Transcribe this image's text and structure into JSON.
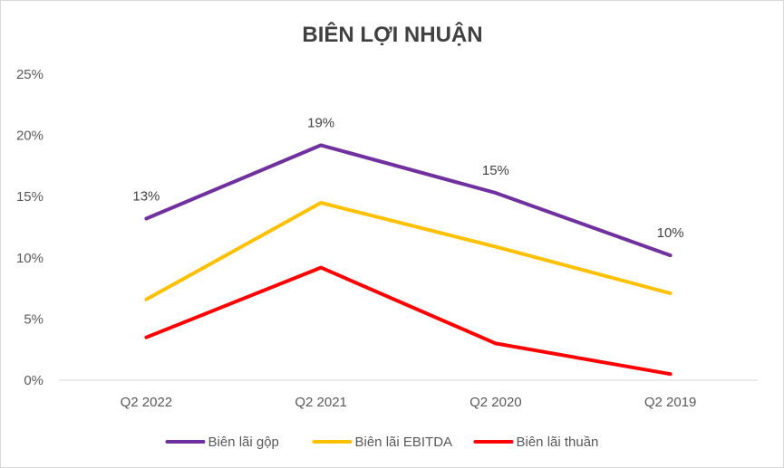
{
  "chart_data": {
    "type": "line",
    "title": "BIÊN LỢI NHUẬN",
    "categories": [
      "Q2 2022",
      "Q2 2021",
      "Q2 2020",
      "Q2 2019"
    ],
    "ylim": [
      0,
      0.25
    ],
    "yticks": [
      "0%",
      "5%",
      "10%",
      "15%",
      "20%",
      "25%"
    ],
    "grid": false,
    "legend_position": "bottom",
    "series": [
      {
        "name": "Biên lãi gộp",
        "color": "#7030a0",
        "values": [
          0.132,
          0.192,
          0.153,
          0.102
        ],
        "labels": [
          "13%",
          "19%",
          "15%",
          "10%"
        ]
      },
      {
        "name": "Biên lãi EBITDA",
        "color": "#ffc000",
        "values": [
          0.066,
          0.145,
          0.109,
          0.071
        ]
      },
      {
        "name": "Biên lãi thuần",
        "color": "#ff0000",
        "values": [
          0.035,
          0.092,
          0.03,
          0.005
        ]
      }
    ]
  }
}
